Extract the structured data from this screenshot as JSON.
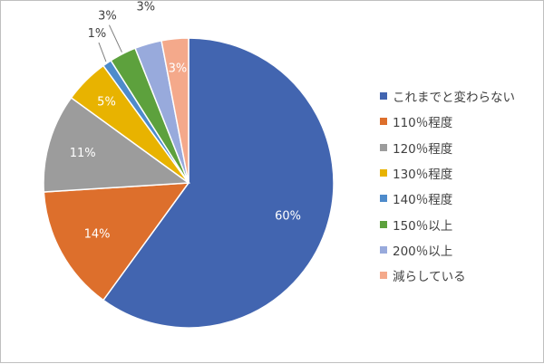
{
  "chart_data": {
    "type": "pie",
    "title": "",
    "legend_position": "right",
    "slices": [
      {
        "label": "これまでと変わらない",
        "value": 60,
        "value_label": "60%",
        "color": "#4265b0"
      },
      {
        "label": "110％程度",
        "value": 14,
        "value_label": "14%",
        "color": "#dd6f2c"
      },
      {
        "label": "120％程度",
        "value": 11,
        "value_label": "11%",
        "color": "#9c9c9c"
      },
      {
        "label": "130％程度",
        "value": 5,
        "value_label": "5%",
        "color": "#e8b300"
      },
      {
        "label": "140％程度",
        "value": 1,
        "value_label": "1%",
        "color": "#4e8bcb"
      },
      {
        "label": "150％以上",
        "value": 3,
        "value_label": "3%",
        "color": "#5da13d"
      },
      {
        "label": "200％以上",
        "value": 3,
        "value_label": "3%",
        "color": "#98aadc"
      },
      {
        "label": "減らしている",
        "value": 3,
        "value_label": "3%",
        "color": "#f4a98b"
      }
    ]
  }
}
